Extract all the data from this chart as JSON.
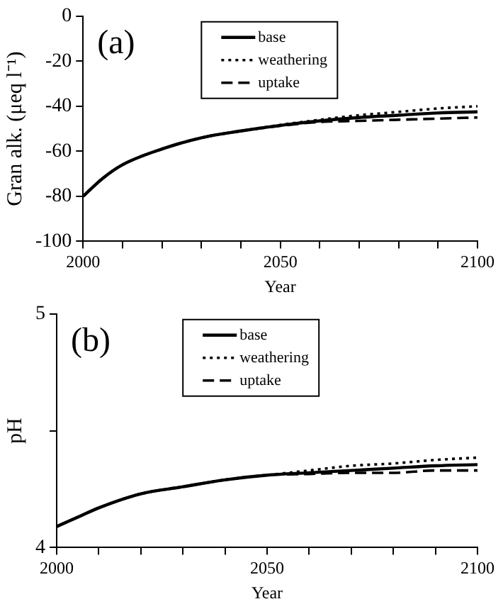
{
  "chart_data": [
    {
      "type": "line",
      "xlabel": "Year",
      "ylabel": "Gran alk. (μeq l⁻¹)",
      "annotations": [
        "(a)"
      ],
      "x": [
        2000,
        2005,
        2010,
        2020,
        2030,
        2040,
        2050,
        2060,
        2070,
        2080,
        2090,
        2100
      ],
      "series": [
        {
          "name": "base",
          "color": "#000000",
          "line_style": "solid",
          "values": [
            -80,
            -72,
            -66,
            -59,
            -54,
            -51,
            -48.5,
            -46.5,
            -45,
            -44,
            -43,
            -42.5
          ]
        },
        {
          "name": "weathering",
          "color": "#000000",
          "line_style": "dotted",
          "values": [
            -80,
            -72,
            -66,
            -59,
            -54,
            -51,
            -48.3,
            -46,
            -44,
            -42.5,
            -41,
            -40
          ]
        },
        {
          "name": "uptake",
          "color": "#000000",
          "line_style": "dashed",
          "values": [
            -80,
            -72,
            -66,
            -59,
            -54,
            -51,
            -48.7,
            -47,
            -46.5,
            -46,
            -45.5,
            -45
          ]
        }
      ],
      "xlim": [
        2000,
        2100
      ],
      "xticks": [
        2000,
        {
          "value": 2010,
          "label": null
        },
        {
          "value": 2020,
          "label": null
        },
        {
          "value": 2030,
          "label": null
        },
        {
          "value": 2040,
          "label": null
        },
        2050,
        {
          "value": 2060,
          "label": null
        },
        {
          "value": 2070,
          "label": null
        },
        {
          "value": 2080,
          "label": null
        },
        {
          "value": 2090,
          "label": null
        },
        2100
      ],
      "ylim": [
        -100,
        0
      ],
      "yticks": [
        -100,
        -80,
        -60,
        -40,
        -20,
        0
      ],
      "legend": "top",
      "grid": false,
      "marker": "none"
    },
    {
      "type": "line",
      "xlabel": "Year",
      "ylabel": "pH",
      "annotations": [
        "(b)"
      ],
      "x": [
        2000,
        2005,
        2010,
        2020,
        2030,
        2040,
        2050,
        2060,
        2070,
        2080,
        2090,
        2100
      ],
      "series": [
        {
          "name": "base",
          "color": "#000000",
          "line_style": "solid",
          "values": [
            4.09,
            4.13,
            4.17,
            4.23,
            4.26,
            4.29,
            4.31,
            4.32,
            4.33,
            4.34,
            4.35,
            4.355
          ]
        },
        {
          "name": "weathering",
          "color": "#000000",
          "line_style": "dotted",
          "values": [
            4.09,
            4.13,
            4.17,
            4.23,
            4.26,
            4.29,
            4.31,
            4.33,
            4.35,
            4.36,
            4.375,
            4.385
          ]
        },
        {
          "name": "uptake",
          "color": "#000000",
          "line_style": "dashed",
          "values": [
            4.09,
            4.13,
            4.17,
            4.23,
            4.26,
            4.29,
            4.31,
            4.315,
            4.32,
            4.32,
            4.33,
            4.33
          ]
        }
      ],
      "xlim": [
        2000,
        2100
      ],
      "xticks": [
        2000,
        {
          "value": 2010,
          "label": null
        },
        {
          "value": 2020,
          "label": null
        },
        {
          "value": 2030,
          "label": null
        },
        {
          "value": 2040,
          "label": null
        },
        2050,
        {
          "value": 2060,
          "label": null
        },
        {
          "value": 2070,
          "label": null
        },
        {
          "value": 2080,
          "label": null
        },
        {
          "value": 2090,
          "label": null
        },
        2100
      ],
      "ylim": [
        4,
        5
      ],
      "yticks": [
        4,
        {
          "value": 4.5,
          "label": null
        },
        5
      ],
      "legend": "top",
      "grid": false,
      "marker": "none"
    }
  ]
}
